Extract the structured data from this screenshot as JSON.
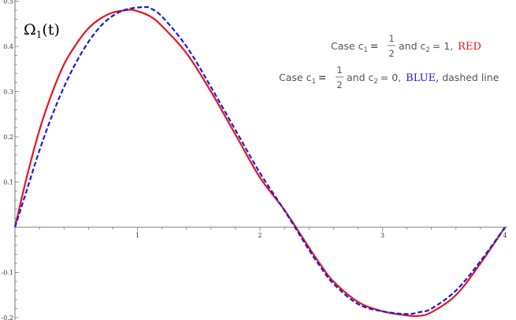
{
  "chart_data": {
    "type": "line",
    "x_ticks": [
      "1",
      "2",
      "3",
      "4"
    ],
    "y_ticks": [
      "0.5",
      "0.4",
      "0.3",
      "0.2",
      "0.1",
      "-0.1",
      "-0.2"
    ],
    "xlim": [
      0,
      4.02
    ],
    "ylim": [
      -0.2,
      0.5
    ],
    "grid": false,
    "y_axis_label": {
      "main": "Ω",
      "sub": "1",
      "rest": "(t)"
    },
    "legend": {
      "line1": {
        "prefix": "Case  c",
        "c1_sub": "1",
        "eq": "=",
        "frac_num": "1",
        "frac_den": "2",
        "mid": " and  c",
        "c2_sub": "2",
        "c2_val": "= 1,",
        "name": "RED"
      },
      "line2": {
        "prefix": "Case  c",
        "c1_sub": "1",
        "eq": "=",
        "frac_num": "1",
        "frac_den": "2",
        "mid": " and  c",
        "c2_sub": "2",
        "c2_val": "= 0,",
        "name": "BLUE,",
        "suffix": " dashed line"
      }
    },
    "series": [
      {
        "color": "#e8141c",
        "style": "solid",
        "x": [
          0,
          0.1,
          0.2,
          0.3,
          0.4,
          0.5,
          0.6,
          0.7,
          0.8,
          0.9,
          0.95,
          1.0,
          1.1,
          1.2,
          1.4,
          1.6,
          1.8,
          2.0,
          2.2,
          2.4,
          2.5,
          2.6,
          2.8,
          3.0,
          3.2,
          3.3,
          3.4,
          3.6,
          3.8,
          4.0
        ],
        "y": [
          0,
          0.115,
          0.215,
          0.295,
          0.36,
          0.405,
          0.44,
          0.462,
          0.475,
          0.48,
          0.481,
          0.478,
          0.467,
          0.445,
          0.385,
          0.3,
          0.205,
          0.11,
          0.038,
          -0.045,
          -0.085,
          -0.12,
          -0.165,
          -0.186,
          -0.195,
          -0.196,
          -0.188,
          -0.15,
          -0.08,
          0.0
        ]
      },
      {
        "color": "#1a1ae6",
        "style": "dashed",
        "x": [
          0,
          0.1,
          0.2,
          0.3,
          0.4,
          0.5,
          0.6,
          0.7,
          0.8,
          0.9,
          1.0,
          1.06,
          1.1,
          1.2,
          1.4,
          1.6,
          1.8,
          2.0,
          2.2,
          2.4,
          2.5,
          2.6,
          2.8,
          3.0,
          3.2,
          3.3,
          3.4,
          3.6,
          3.8,
          4.0
        ],
        "y": [
          0,
          0.085,
          0.17,
          0.245,
          0.31,
          0.365,
          0.41,
          0.445,
          0.468,
          0.481,
          0.486,
          0.487,
          0.485,
          0.466,
          0.4,
          0.31,
          0.215,
          0.12,
          0.037,
          -0.05,
          -0.09,
          -0.125,
          -0.17,
          -0.186,
          -0.192,
          -0.188,
          -0.18,
          -0.14,
          -0.075,
          0.0
        ]
      }
    ]
  }
}
